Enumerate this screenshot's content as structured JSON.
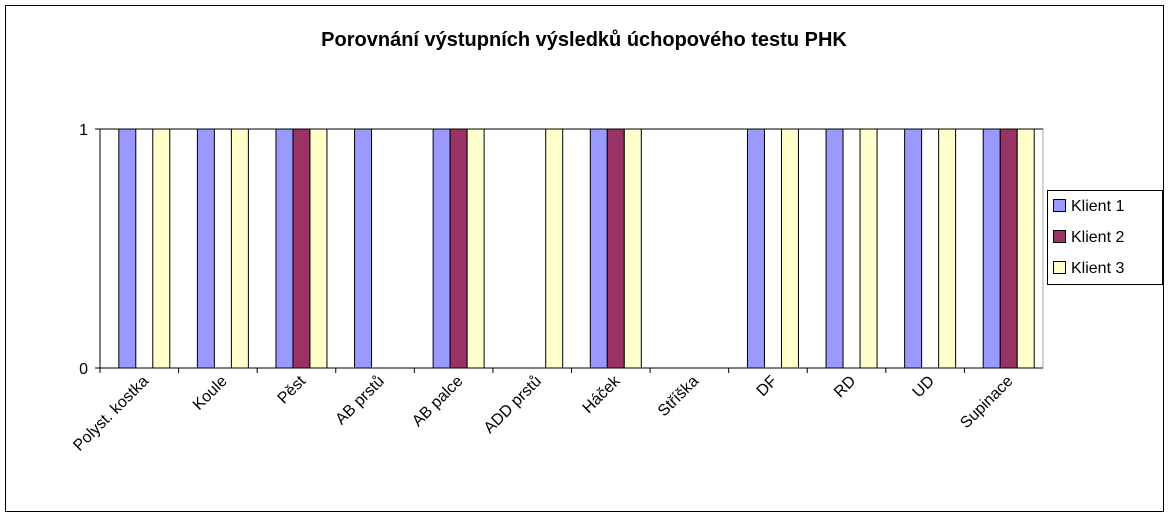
{
  "chart_data": {
    "type": "bar",
    "title": "Porovnání výstupních výsledků úchopového testu PHK",
    "categories": [
      "Polyst. kostka",
      "Koule",
      "Pěst",
      "AB prstů",
      "AB palce",
      "ADD prstů",
      "Háček",
      "Stříška",
      "DF",
      "RD",
      "UD",
      "Supinace"
    ],
    "series": [
      {
        "name": "Klient 1",
        "color": "#9999ff",
        "values": [
          1,
          1,
          1,
          1,
          1,
          0,
          1,
          0,
          1,
          1,
          1,
          1
        ]
      },
      {
        "name": "Klient 2",
        "color": "#993366",
        "values": [
          0,
          0,
          1,
          0,
          1,
          0,
          1,
          0,
          0,
          0,
          0,
          1
        ]
      },
      {
        "name": "Klient 3",
        "color": "#ffffcc",
        "values": [
          1,
          1,
          1,
          0,
          1,
          1,
          1,
          0,
          1,
          1,
          1,
          1
        ]
      }
    ],
    "ylim": [
      0,
      1
    ],
    "yticks": [
      0,
      1
    ],
    "grid": true,
    "legend": "right"
  }
}
